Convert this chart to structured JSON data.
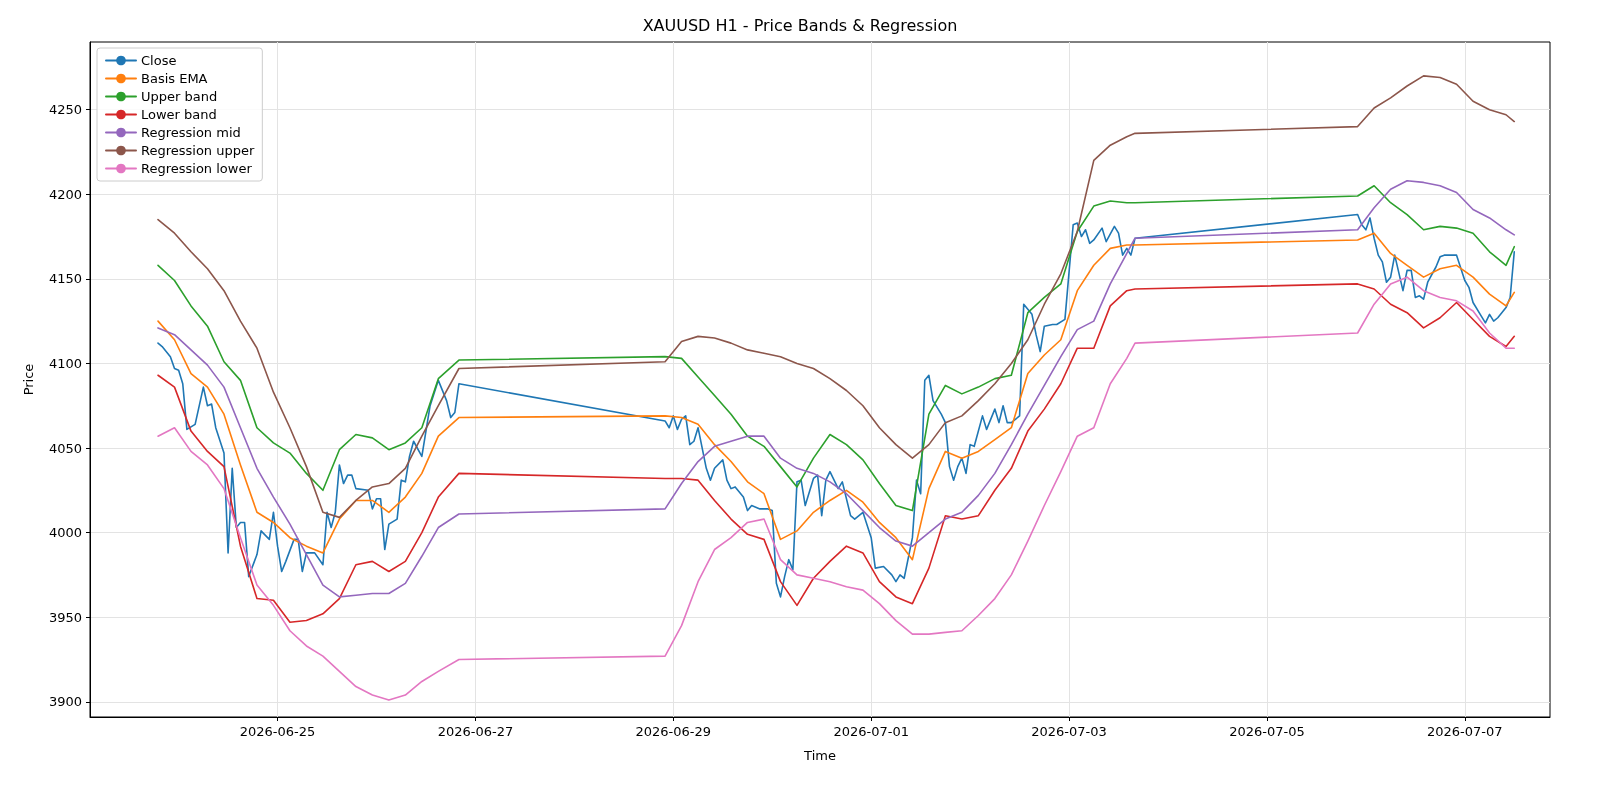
{
  "chart_data": {
    "type": "line",
    "title": "XAUUSD H1 - Price Bands & Regression",
    "xlabel": "Time",
    "ylabel": "Price",
    "x": [
      "2026-06-23T19:00",
      "2026-06-23T23:00",
      "2026-06-24T03:00",
      "2026-06-24T07:00",
      "2026-06-24T11:00",
      "2026-06-24T15:00",
      "2026-06-24T19:00",
      "2026-06-24T23:00",
      "2026-06-25T03:00",
      "2026-06-25T07:00",
      "2026-06-25T11:00",
      "2026-06-25T15:00",
      "2026-06-25T19:00",
      "2026-06-25T23:00",
      "2026-06-26T03:00",
      "2026-06-26T07:00",
      "2026-06-26T11:00",
      "2026-06-26T15:00",
      "2026-06-26T20:00",
      "2026-06-28T22:00",
      "2026-06-29T02:00",
      "2026-06-29T06:00",
      "2026-06-29T10:00",
      "2026-06-29T14:00",
      "2026-06-29T18:00",
      "2026-06-29T22:00",
      "2026-06-30T02:00",
      "2026-06-30T06:00",
      "2026-06-30T10:00",
      "2026-06-30T14:00",
      "2026-06-30T18:00",
      "2026-06-30T22:00",
      "2026-07-01T02:00",
      "2026-07-01T06:00",
      "2026-07-01T10:00",
      "2026-07-01T14:00",
      "2026-07-01T18:00",
      "2026-07-01T22:00",
      "2026-07-02T02:00",
      "2026-07-02T06:00",
      "2026-07-02T10:00",
      "2026-07-02T14:00",
      "2026-07-02T18:00",
      "2026-07-02T22:00",
      "2026-07-03T02:00",
      "2026-07-03T06:00",
      "2026-07-03T10:00",
      "2026-07-03T14:00",
      "2026-07-03T16:00",
      "2026-07-05T22:00",
      "2026-07-06T02:00",
      "2026-07-06T06:00",
      "2026-07-06T10:00",
      "2026-07-06T14:00",
      "2026-07-06T18:00",
      "2026-07-06T22:00",
      "2026-07-07T02:00",
      "2026-07-07T06:00",
      "2026-07-07T10:00",
      "2026-07-07T12:00"
    ],
    "series": [
      {
        "name": "Close",
        "color": "#1f77b4",
        "x": [
          "2026-06-23T19:00",
          "2026-06-23T20:00",
          "2026-06-23T22:00",
          "2026-06-23T23:00",
          "2026-06-24T00:00",
          "2026-06-24T01:00",
          "2026-06-24T02:00",
          "2026-06-24T04:00",
          "2026-06-24T06:00",
          "2026-06-24T07:00",
          "2026-06-24T08:00",
          "2026-06-24T09:00",
          "2026-06-24T11:00",
          "2026-06-24T12:00",
          "2026-06-24T13:00",
          "2026-06-24T14:00",
          "2026-06-24T15:00",
          "2026-06-24T16:00",
          "2026-06-24T17:00",
          "2026-06-24T19:00",
          "2026-06-24T20:00",
          "2026-06-24T22:00",
          "2026-06-24T23:00",
          "2026-06-25T00:00",
          "2026-06-25T01:00",
          "2026-06-25T02:00",
          "2026-06-25T04:00",
          "2026-06-25T05:00",
          "2026-06-25T06:00",
          "2026-06-25T07:00",
          "2026-06-25T09:00",
          "2026-06-25T11:00",
          "2026-06-25T12:00",
          "2026-06-25T13:00",
          "2026-06-25T14:00",
          "2026-06-25T15:00",
          "2026-06-25T16:00",
          "2026-06-25T17:00",
          "2026-06-25T18:00",
          "2026-06-25T19:00",
          "2026-06-25T22:00",
          "2026-06-25T23:00",
          "2026-06-26T00:00",
          "2026-06-26T01:00",
          "2026-06-26T02:00",
          "2026-06-26T03:00",
          "2026-06-26T05:00",
          "2026-06-26T06:00",
          "2026-06-26T07:00",
          "2026-06-26T08:00",
          "2026-06-26T09:00",
          "2026-06-26T11:00",
          "2026-06-26T13:00",
          "2026-06-26T15:00",
          "2026-06-26T17:00",
          "2026-06-26T18:00",
          "2026-06-26T19:00",
          "2026-06-26T20:00",
          "2026-06-28T22:00",
          "2026-06-28T23:00",
          "2026-06-29T00:00",
          "2026-06-29T01:00",
          "2026-06-29T02:00",
          "2026-06-29T03:00",
          "2026-06-29T04:00",
          "2026-06-29T05:00",
          "2026-06-29T06:00",
          "2026-06-29T08:00",
          "2026-06-29T09:00",
          "2026-06-29T10:00",
          "2026-06-29T12:00",
          "2026-06-29T13:00",
          "2026-06-29T14:00",
          "2026-06-29T15:00",
          "2026-06-29T17:00",
          "2026-06-29T18:00",
          "2026-06-29T19:00",
          "2026-06-29T21:00",
          "2026-06-29T23:00",
          "2026-06-30T00:00",
          "2026-06-30T01:00",
          "2026-06-30T02:00",
          "2026-06-30T03:00",
          "2026-06-30T04:00",
          "2026-06-30T05:00",
          "2026-06-30T06:00",
          "2026-06-30T07:00",
          "2026-06-30T08:00",
          "2026-06-30T10:00",
          "2026-06-30T11:00",
          "2026-06-30T12:00",
          "2026-06-30T13:00",
          "2026-06-30T14:00",
          "2026-06-30T16:00",
          "2026-06-30T17:00",
          "2026-06-30T19:00",
          "2026-06-30T20:00",
          "2026-06-30T22:00",
          "2026-07-01T00:00",
          "2026-07-01T01:00",
          "2026-07-01T03:00",
          "2026-07-01T05:00",
          "2026-07-01T06:00",
          "2026-07-01T07:00",
          "2026-07-01T08:00",
          "2026-07-01T10:00",
          "2026-07-01T11:00",
          "2026-07-01T12:00",
          "2026-07-01T13:00",
          "2026-07-01T14:00",
          "2026-07-01T15:00",
          "2026-07-01T17:00",
          "2026-07-01T18:00",
          "2026-07-01T19:00",
          "2026-07-01T20:00",
          "2026-07-01T21:00",
          "2026-07-01T22:00",
          "2026-07-01T23:00",
          "2026-07-02T00:00",
          "2026-07-02T01:00",
          "2026-07-02T03:00",
          "2026-07-02T04:00",
          "2026-07-02T06:00",
          "2026-07-02T07:00",
          "2026-07-02T08:00",
          "2026-07-02T09:00",
          "2026-07-02T10:00",
          "2026-07-02T12:00",
          "2026-07-02T13:00",
          "2026-07-02T15:00",
          "2026-07-02T16:00",
          "2026-07-02T17:00",
          "2026-07-02T18:00",
          "2026-07-02T20:00",
          "2026-07-02T21:00",
          "2026-07-02T23:00",
          "2026-07-03T01:00",
          "2026-07-03T02:00",
          "2026-07-03T03:00",
          "2026-07-03T04:00",
          "2026-07-03T05:00",
          "2026-07-03T06:00",
          "2026-07-03T08:00",
          "2026-07-03T09:00",
          "2026-07-03T11:00",
          "2026-07-03T12:00",
          "2026-07-03T13:00",
          "2026-07-03T14:00",
          "2026-07-03T15:00",
          "2026-07-03T16:00",
          "2026-07-05T22:00",
          "2026-07-05T23:00",
          "2026-07-06T00:00",
          "2026-07-06T01:00",
          "2026-07-06T02:00",
          "2026-07-06T03:00",
          "2026-07-06T04:00",
          "2026-07-06T05:00",
          "2026-07-06T06:00",
          "2026-07-06T07:00",
          "2026-07-06T09:00",
          "2026-07-06T10:00",
          "2026-07-06T11:00",
          "2026-07-06T12:00",
          "2026-07-06T13:00",
          "2026-07-06T14:00",
          "2026-07-06T15:00",
          "2026-07-06T17:00",
          "2026-07-06T18:00",
          "2026-07-06T19:00",
          "2026-07-06T21:00",
          "2026-07-06T22:00",
          "2026-07-07T00:00",
          "2026-07-07T01:00",
          "2026-07-07T02:00",
          "2026-07-07T04:00",
          "2026-07-07T05:00",
          "2026-07-07T06:00",
          "2026-07-07T07:00",
          "2026-07-07T08:00",
          "2026-07-07T10:00",
          "2026-07-07T11:00",
          "2026-07-07T12:00"
        ],
        "values": [
          4112,
          4110,
          4104,
          4097,
          4096,
          4088,
          4061,
          4064,
          4086,
          4075,
          4076,
          4062,
          4047,
          3988,
          4038,
          4003,
          4006,
          4006,
          3974,
          3987,
          4001,
          3996,
          4012,
          3992,
          3977,
          3983,
          3996,
          3996,
          3977,
          3988,
          3988,
          3981,
          4012,
          4003,
          4012,
          4040,
          4029,
          4034,
          4034,
          4026,
          4025,
          4014,
          4020,
          4020,
          3990,
          4005,
          4008,
          4031,
          4030,
          4045,
          4054,
          4045,
          4075,
          4090,
          4078,
          4068,
          4071,
          4088,
          4066,
          4062,
          4069,
          4061,
          4067,
          4069,
          4052,
          4054,
          4062,
          4038,
          4031,
          4038,
          4043,
          4031,
          4026,
          4027,
          4021,
          4013,
          4016,
          4014,
          4014,
          4013,
          3970,
          3962,
          3974,
          3984,
          3978,
          4030,
          4031,
          4016,
          4032,
          4034,
          4010,
          4031,
          4036,
          4026,
          4030,
          4010,
          4008,
          4012,
          3997,
          3979,
          3980,
          3975,
          3971,
          3975,
          3973,
          3997,
          4031,
          4023,
          4090,
          4093,
          4078,
          4070,
          4065,
          4039,
          4031,
          4039,
          4044,
          4035,
          4052,
          4051,
          4069,
          4061,
          4073,
          4065,
          4075,
          4065,
          4065,
          4069,
          4135,
          4129,
          4117,
          4107,
          4122,
          4123,
          4123,
          4126,
          4182,
          4183,
          4175,
          4179,
          4171,
          4173,
          4180,
          4172,
          4181,
          4177,
          4164,
          4168,
          4164,
          4174,
          4188,
          4182,
          4179,
          4186,
          4174,
          4164,
          4160,
          4148,
          4151,
          4164,
          4143,
          4155,
          4155,
          4139,
          4140,
          4138,
          4148,
          4157,
          4163,
          4164,
          4164,
          4164,
          4149,
          4145,
          4136,
          4128,
          4124,
          4129,
          4125,
          4127,
          4133,
          4139,
          4166
        ]
      },
      {
        "name": "Basis EMA",
        "color": "#ff7f0e",
        "values": [
          4125,
          4114,
          4094,
          4086,
          4070,
          4040,
          4012,
          4006,
          3997,
          3992,
          3988,
          4008,
          4019,
          4019,
          4012,
          4021,
          4035,
          4057,
          4068,
          4069,
          4068,
          4064,
          4052,
          4042,
          4030,
          4023,
          3996,
          4001,
          4012,
          4019,
          4025,
          4018,
          4006,
          3997,
          3984,
          4026,
          4048,
          4044,
          4048,
          4055,
          4062,
          4094,
          4105,
          4114,
          4143,
          4158,
          4168,
          4170,
          4170,
          4173,
          4177,
          4165,
          4158,
          4151,
          4156,
          4158,
          4151,
          4141,
          4134,
          4142
        ]
      },
      {
        "name": "Upper band",
        "color": "#2ca02c",
        "values": [
          4158,
          4149,
          4134,
          4122,
          4101,
          4090,
          4062,
          4053,
          4047,
          4035,
          4025,
          4049,
          4058,
          4056,
          4049,
          4053,
          4062,
          4091,
          4102,
          4104,
          4103,
          4092,
          4081,
          4070,
          4057,
          4051,
          4039,
          4027,
          4044,
          4058,
          4052,
          4043,
          4029,
          4016,
          4013,
          4070,
          4087,
          4082,
          4086,
          4091,
          4093,
          4130,
          4139,
          4147,
          4178,
          4193,
          4196,
          4195,
          4195,
          4199,
          4205,
          4195,
          4188,
          4179,
          4181,
          4180,
          4177,
          4166,
          4158,
          4169
        ]
      },
      {
        "name": "Lower band",
        "color": "#d62728",
        "values": [
          4093,
          4086,
          4060,
          4048,
          4039,
          3992,
          3961,
          3960,
          3947,
          3948,
          3952,
          3961,
          3981,
          3983,
          3977,
          3983,
          4000,
          4021,
          4035,
          4032,
          4032,
          4031,
          4019,
          4008,
          3999,
          3996,
          3971,
          3957,
          3973,
          3983,
          3992,
          3988,
          3971,
          3962,
          3958,
          3979,
          4010,
          4008,
          4010,
          4025,
          4038,
          4060,
          4073,
          4088,
          4109,
          4109,
          4134,
          4143,
          4144,
          4147,
          4144,
          4135,
          4130,
          4121,
          4127,
          4136,
          4126,
          4116,
          4110,
          4116
        ]
      },
      {
        "name": "Regression mid",
        "color": "#9467bd",
        "values": [
          4121,
          4117,
          4108,
          4099,
          4086,
          4062,
          4038,
          4021,
          4005,
          3987,
          3969,
          3962,
          3963,
          3964,
          3964,
          3970,
          3986,
          4003,
          4011,
          4014,
          4029,
          4042,
          4051,
          4054,
          4057,
          4057,
          4044,
          4038,
          4035,
          4030,
          4023,
          4013,
          4003,
          3995,
          3992,
          4000,
          4008,
          4012,
          4022,
          4035,
          4052,
          4070,
          4087,
          4104,
          4120,
          4125,
          4147,
          4165,
          4174,
          4179,
          4192,
          4203,
          4208,
          4207,
          4205,
          4201,
          4191,
          4186,
          4179,
          4176
        ]
      },
      {
        "name": "Regression upper",
        "color": "#8c564b",
        "values": [
          4185,
          4177,
          4166,
          4156,
          4143,
          4125,
          4109,
          4083,
          4062,
          4039,
          4012,
          4009,
          4019,
          4027,
          4029,
          4038,
          4057,
          4075,
          4097,
          4101,
          4113,
          4116,
          4115,
          4112,
          4108,
          4106,
          4104,
          4100,
          4097,
          4091,
          4084,
          4075,
          4062,
          4052,
          4044,
          4052,
          4065,
          4069,
          4078,
          4088,
          4100,
          4114,
          4135,
          4153,
          4178,
          4220,
          4229,
          4234,
          4236,
          4240,
          4251,
          4257,
          4264,
          4270,
          4269,
          4265,
          4255,
          4250,
          4247,
          4243
        ]
      },
      {
        "name": "Regression lower",
        "color": "#e377c2",
        "values": [
          4057,
          4062,
          4048,
          4040,
          4026,
          3997,
          3969,
          3957,
          3942,
          3933,
          3927,
          3918,
          3909,
          3904,
          3901,
          3904,
          3912,
          3918,
          3925,
          3927,
          3945,
          3971,
          3990,
          3997,
          4006,
          4008,
          3984,
          3975,
          3973,
          3971,
          3968,
          3966,
          3958,
          3948,
          3940,
          3940,
          3941,
          3942,
          3951,
          3961,
          3975,
          3995,
          4016,
          4036,
          4057,
          4062,
          4088,
          4103,
          4112,
          4118,
          4135,
          4147,
          4151,
          4143,
          4139,
          4137,
          4131,
          4118,
          4109,
          4109
        ]
      }
    ],
    "xlim": [
      "2026-06-23T02:30",
      "2026-07-07T20:40"
    ],
    "xticks": [
      "2026-06-25",
      "2026-06-27",
      "2026-06-29",
      "2026-07-01",
      "2026-07-03",
      "2026-07-05",
      "2026-07-07"
    ],
    "ylim": [
      3891,
      4290
    ],
    "yticks": [
      3900,
      3950,
      4000,
      4050,
      4100,
      4150,
      4200,
      4250
    ],
    "grid": true,
    "legend": "top left",
    "marker": "none",
    "line_style": "solid"
  }
}
